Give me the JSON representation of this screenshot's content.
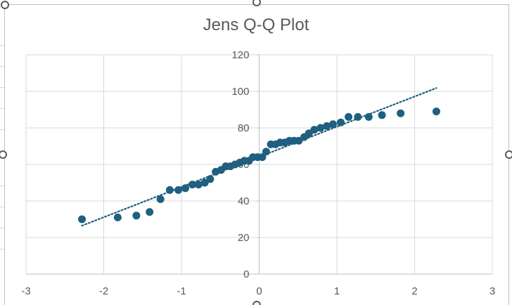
{
  "chart_data": {
    "type": "scatter",
    "title": "Jens Q-Q Plot",
    "xlabel": "",
    "ylabel": "",
    "xlim": [
      -3,
      3
    ],
    "ylim": [
      0,
      120
    ],
    "x_ticks": [
      "-3",
      "-2",
      "-1",
      "0",
      "1",
      "2",
      "3"
    ],
    "y_ticks": [
      "0",
      "20",
      "40",
      "60",
      "80",
      "100",
      "120"
    ],
    "grid": true,
    "legend": "none",
    "marker_color": "#1f5f7f",
    "trendline": {
      "style": "dotted",
      "color": "#1f5f7f",
      "points": [
        [
          -2.28,
          26.5
        ],
        [
          2.28,
          101.8
        ]
      ]
    },
    "points": [
      [
        -2.28,
        30
      ],
      [
        -1.82,
        31
      ],
      [
        -1.58,
        32
      ],
      [
        -1.41,
        34
      ],
      [
        -1.27,
        41
      ],
      [
        -1.15,
        46
      ],
      [
        -1.04,
        46
      ],
      [
        -0.95,
        47
      ],
      [
        -0.86,
        49
      ],
      [
        -0.78,
        49
      ],
      [
        -0.7,
        50
      ],
      [
        -0.63,
        52
      ],
      [
        -0.56,
        56
      ],
      [
        -0.49,
        57
      ],
      [
        -0.43,
        59
      ],
      [
        -0.37,
        59
      ],
      [
        -0.31,
        60
      ],
      [
        -0.25,
        61
      ],
      [
        -0.19,
        62
      ],
      [
        -0.13,
        62
      ],
      [
        -0.08,
        64
      ],
      [
        -0.02,
        64
      ],
      [
        0.04,
        64
      ],
      [
        0.09,
        67
      ],
      [
        0.15,
        71
      ],
      [
        0.21,
        71
      ],
      [
        0.27,
        72
      ],
      [
        0.33,
        72
      ],
      [
        0.39,
        73
      ],
      [
        0.45,
        73
      ],
      [
        0.51,
        73
      ],
      [
        0.58,
        75
      ],
      [
        0.64,
        77
      ],
      [
        0.71,
        79
      ],
      [
        0.79,
        80
      ],
      [
        0.87,
        81
      ],
      [
        0.95,
        82
      ],
      [
        1.05,
        83
      ],
      [
        1.15,
        86
      ],
      [
        1.27,
        86
      ],
      [
        1.41,
        86
      ],
      [
        1.58,
        87
      ],
      [
        1.82,
        88
      ],
      [
        2.28,
        89
      ]
    ]
  }
}
